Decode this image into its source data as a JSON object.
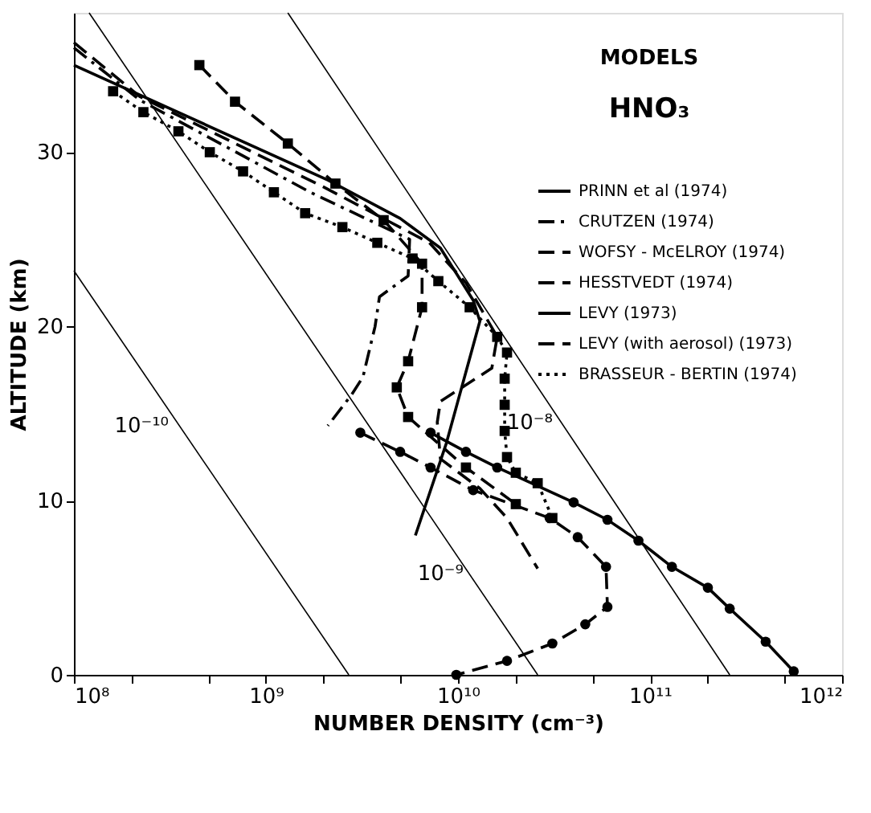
{
  "chart_data": {
    "type": "line",
    "title": "MODELS",
    "subtitle": "HNO₃",
    "xlabel": "NUMBER DENSITY (cm⁻³)",
    "ylabel": "ALTITUDE (km)",
    "log": "x",
    "grid": false,
    "legend": "top right",
    "xlim": [
      100000000.0,
      1000000000000.0
    ],
    "ylim": [
      0,
      38
    ],
    "xticks": [
      {
        "value": 100000000.0,
        "label": "10⁸"
      },
      {
        "value": 200000000.0,
        "label": null
      },
      {
        "value": 500000000.0,
        "label": null
      },
      {
        "value": 1000000000.0,
        "label": "10⁹"
      },
      {
        "value": 2000000000.0,
        "label": null
      },
      {
        "value": 5000000000.0,
        "label": null
      },
      {
        "value": 10000000000.0,
        "label": "10¹⁰"
      },
      {
        "value": 20000000000.0,
        "label": null
      },
      {
        "value": 50000000000.0,
        "label": null
      },
      {
        "value": 100000000000.0,
        "label": "10¹¹"
      },
      {
        "value": 200000000000.0,
        "label": null
      },
      {
        "value": 500000000000.0,
        "label": null
      },
      {
        "value": 1000000000000.0,
        "label": "10¹²"
      }
    ],
    "yticks": [
      0,
      10,
      20,
      30
    ],
    "series": [
      {
        "name": "PRINN et al (1974)",
        "color": "#000000",
        "line_style": "solid",
        "marker": "none",
        "x": [
          100000000.0,
          2100000000.0,
          5000000000.0,
          8100000000.0,
          12000000000.0,
          13000000000.0,
          8700000000.0,
          6000000000.0
        ],
        "values": [
          35.0,
          28.4,
          26.2,
          24.5,
          21.5,
          20.3,
          13.3,
          8.0
        ]
      },
      {
        "name": "CRUTZEN (1974)",
        "color": "#000000",
        "line_style": "dashdot",
        "marker": "none",
        "x": [
          100000000.0,
          220000000.0,
          1700000000.0,
          5600000000.0,
          5500000000.0,
          3900000000.0,
          3700000000.0,
          3200000000.0,
          2800000000.0,
          2100000000.0
        ],
        "values": [
          36.0,
          33.0,
          27.7,
          25.0,
          22.9,
          21.7,
          20.0,
          17.1,
          16.1,
          14.3
        ]
      },
      {
        "name": "WOFSY - McELROY (1974)",
        "color": "#000000",
        "line_style": "dashed",
        "marker": "none",
        "x": [
          100000000.0,
          220000000.0,
          2000000000.0,
          7100000000.0,
          11000000000.0,
          16000000000.0,
          15000000000.0,
          8100000000.0,
          7800000000.0,
          8100000000.0,
          13000000000.0,
          18000000000.0,
          26000000000.0
        ],
        "values": [
          36.3,
          33.2,
          28.0,
          24.8,
          22.5,
          19.4,
          17.6,
          15.7,
          14.5,
          12.4,
          10.7,
          9.0,
          6.1
        ]
      },
      {
        "name": "HESSTVEDT (1974)",
        "color": "#000000",
        "line_style": "dashed",
        "marker": "square",
        "x": [
          450000000.0,
          690000000.0,
          1300000000.0,
          2300000000.0,
          4100000000.0,
          6500000000.0,
          6500000000.0,
          5500000000.0,
          4800000000.0,
          5500000000.0,
          11000000000.0,
          20000000000.0
        ],
        "values": [
          35.0,
          32.9,
          30.5,
          28.2,
          26.1,
          23.6,
          21.1,
          18.0,
          16.5,
          14.8,
          11.9,
          9.8
        ]
      },
      {
        "name": "LEVY (1973)",
        "color": "#000000",
        "line_style": "solid",
        "marker": "circle",
        "x": [
          7200000000.0,
          11000000000.0,
          16000000000.0,
          40000000000.0,
          60000000000.0,
          87000000000.0,
          130000000000.0,
          200000000000.0,
          260000000000.0,
          400000000000.0,
          560000000000.0
        ],
        "values": [
          13.9,
          12.8,
          11.9,
          9.9,
          8.9,
          7.7,
          6.2,
          5.0,
          3.8,
          1.9,
          0.2
        ]
      },
      {
        "name": "LEVY (with aerosol) (1973)",
        "color": "#000000",
        "line_style": "dashed",
        "marker": "circle",
        "x": [
          3100000000.0,
          5000000000.0,
          7200000000.0,
          12000000000.0,
          30000000000.0,
          42000000000.0,
          59000000000.0,
          60000000000.0,
          46000000000.0,
          31000000000.0,
          18000000000.0,
          9800000000.0
        ],
        "values": [
          13.9,
          12.8,
          11.9,
          10.6,
          9.0,
          7.9,
          6.2,
          3.9,
          2.9,
          1.8,
          0.8,
          0.0
        ]
      },
      {
        "name": "BRASSEUR - BERTIN (1974)",
        "color": "#000000",
        "line_style": "dotted",
        "marker": "square",
        "x": [
          160000000.0,
          230000000.0,
          350000000.0,
          510000000.0,
          760000000.0,
          1100000000.0,
          1600000000.0,
          2500000000.0,
          3800000000.0,
          5800000000.0,
          7900000000.0,
          11500000000.0,
          16000000000.0,
          18000000000.0,
          17500000000.0,
          17500000000.0,
          17500000000.0,
          18000000000.0,
          20000000000.0,
          26000000000.0,
          31000000000.0
        ],
        "values": [
          33.5,
          32.3,
          31.2,
          30.0,
          28.9,
          27.7,
          26.5,
          25.7,
          24.8,
          23.9,
          22.6,
          21.1,
          19.4,
          18.5,
          17.0,
          15.5,
          14.0,
          12.5,
          11.6,
          11.0,
          9.0
        ]
      },
      {
        "color": "#000000",
        "line_style": "solid",
        "marker": "none",
        "x": [
          100000000.0,
          2700000000.0
        ],
        "values": [
          23.2,
          0
        ]
      },
      {
        "color": "#000000",
        "line_style": "solid",
        "marker": "none",
        "x": [
          120000000.0,
          26000000000.0
        ],
        "values": [
          38,
          0
        ]
      },
      {
        "color": "#000000",
        "line_style": "solid",
        "marker": "none",
        "x": [
          1300000000.0,
          260000000000.0
        ],
        "values": [
          38,
          0
        ]
      }
    ],
    "annotations": [
      {
        "text": "10⁻¹⁰",
        "x": 350000000.0,
        "y": 14.3
      },
      {
        "text": "10⁻⁹",
        "x": 12000000000.0,
        "y": 5.8
      },
      {
        "text": "10⁻⁸",
        "x": 35000000000.0,
        "y": 14.5
      }
    ]
  }
}
